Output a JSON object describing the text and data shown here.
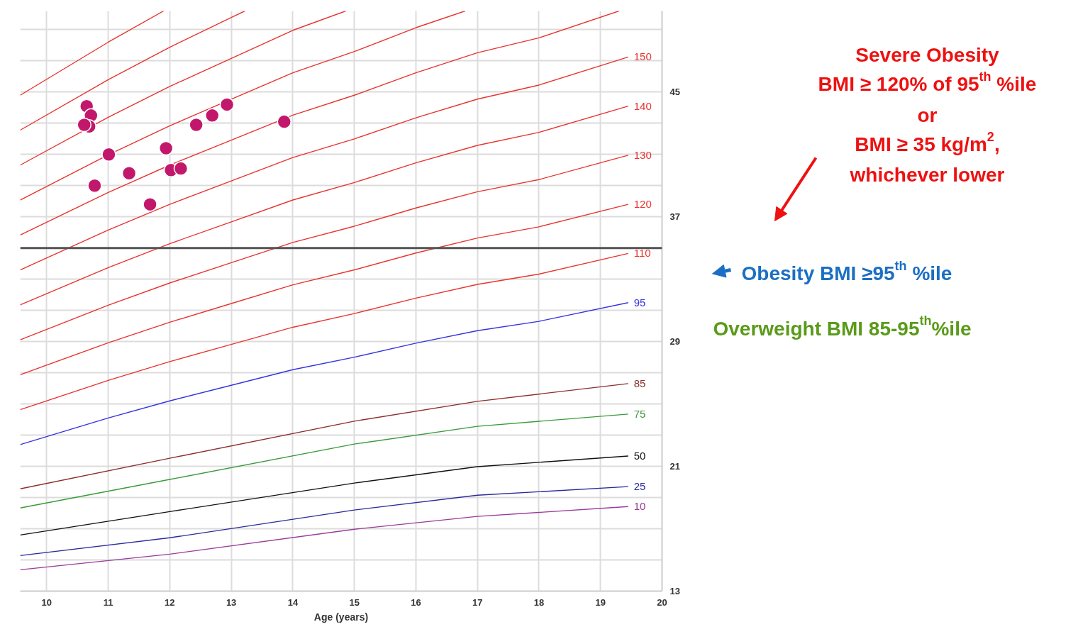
{
  "chart_data": {
    "type": "line",
    "xlabel": "Age (years)",
    "xlim": [
      9.57,
      20
    ],
    "ylim": [
      13,
      50.2
    ],
    "xticks": [
      10,
      11,
      12,
      13,
      14,
      15,
      16,
      17,
      18,
      19,
      20
    ],
    "yticks": [
      13,
      {
        "value": 15,
        "label": null
      },
      {
        "value": 17,
        "label": null
      },
      {
        "value": 19,
        "label": null
      },
      21,
      {
        "value": 23,
        "label": null
      },
      {
        "value": 25,
        "label": null
      },
      {
        "value": 27,
        "label": null
      },
      29,
      {
        "value": 31,
        "label": null
      },
      {
        "value": 33,
        "label": null
      },
      {
        "value": 35,
        "label": null
      },
      37,
      {
        "value": 39,
        "label": null
      },
      {
        "value": 41,
        "label": null
      },
      {
        "value": 43,
        "label": null
      },
      45,
      {
        "value": 47,
        "label": null
      },
      {
        "value": 49,
        "label": null
      }
    ],
    "grid": true,
    "line_style": "solid",
    "ref_lines": [
      {
        "axis": "y",
        "value": 35,
        "color": "#555555"
      }
    ],
    "annotations": [
      "Severe Obesity",
      "BMI ≥ 120% of 95$^{th}$ %ile",
      "or",
      "BMI ≥ 35 kg/m$^{2}$,",
      "whichever lower",
      "Obesity BMI ≥95$^{th}$ %ile",
      "Overweight BMI 85-95$^{th}$%ile"
    ],
    "series": [
      {
        "color": "#e8342e",
        "x": [
          9.57,
          11,
          11.9
        ],
        "values": [
          44.8,
          48.2,
          50.2
        ]
      },
      {
        "color": "#e8342e",
        "x": [
          9.57,
          11,
          12,
          13,
          13.22
        ],
        "values": [
          42.56,
          45.79,
          47.88,
          49.78,
          50.2
        ]
      },
      {
        "color": "#e8342e",
        "x": [
          9.57,
          11,
          12,
          13,
          14,
          14.86
        ],
        "values": [
          40.32,
          43.38,
          45.36,
          47.16,
          48.96,
          50.2
        ]
      },
      {
        "color": "#e8342e",
        "x": [
          9.57,
          11,
          12,
          13,
          14,
          15,
          16,
          16.8
        ],
        "values": [
          38.08,
          40.97,
          42.84,
          44.54,
          46.24,
          47.6,
          49.13,
          50.2
        ]
      },
      {
        "color": "#e8342e",
        "x": [
          9.57,
          11,
          12,
          13,
          14,
          15,
          16,
          17,
          18,
          19.3
        ],
        "values": [
          35.84,
          38.56,
          40.32,
          41.92,
          43.52,
          44.8,
          46.24,
          47.52,
          48.48,
          50.2
        ]
      },
      {
        "name": "150",
        "color": "#e8342e",
        "x": [
          9.57,
          11,
          12,
          13,
          14,
          15,
          16,
          17,
          18,
          19.45
        ],
        "values": [
          33.6,
          36.15,
          37.8,
          39.3,
          40.8,
          42,
          43.35,
          44.55,
          45.45,
          47.25
        ]
      },
      {
        "name": "140",
        "color": "#e8342e",
        "x": [
          9.57,
          11,
          12,
          13,
          14,
          15,
          16,
          17,
          18,
          19.45
        ],
        "values": [
          31.36,
          33.74,
          35.28,
          36.68,
          38.08,
          39.2,
          40.46,
          41.58,
          42.42,
          44.1
        ]
      },
      {
        "name": "130",
        "color": "#e8342e",
        "x": [
          9.57,
          11,
          12,
          13,
          14,
          15,
          16,
          17,
          18,
          19.45
        ],
        "values": [
          29.12,
          31.33,
          32.76,
          34.06,
          35.36,
          36.4,
          37.57,
          38.61,
          39.39,
          40.95
        ]
      },
      {
        "name": "120",
        "color": "#e8342e",
        "x": [
          9.57,
          11,
          12,
          13,
          14,
          15,
          16,
          17,
          18,
          19.45
        ],
        "values": [
          26.88,
          28.92,
          30.24,
          31.44,
          32.64,
          33.6,
          34.68,
          35.64,
          36.36,
          37.8
        ]
      },
      {
        "name": "110",
        "color": "#e8342e",
        "x": [
          9.57,
          11,
          12,
          13,
          14,
          15,
          16,
          17,
          18,
          19.45
        ],
        "values": [
          24.64,
          26.51,
          27.72,
          28.82,
          29.92,
          30.8,
          31.79,
          32.67,
          33.33,
          34.65
        ]
      },
      {
        "name": "95",
        "color": "#3434e0",
        "x": [
          9.57,
          11,
          12,
          13,
          14,
          15,
          16,
          17,
          18,
          19.45
        ],
        "values": [
          22.4,
          24.1,
          25.2,
          26.2,
          27.2,
          28,
          28.9,
          29.7,
          30.3,
          31.5
        ]
      },
      {
        "name": "85",
        "color": "#8b2e2e",
        "x": [
          9.57,
          12,
          15,
          17,
          19.45
        ],
        "values": [
          19.56,
          21.52,
          23.9,
          25.17,
          26.31
        ]
      },
      {
        "name": "75",
        "color": "#3a9a3a",
        "x": [
          9.57,
          12,
          15,
          17,
          19.45
        ],
        "values": [
          18.33,
          20.16,
          22.43,
          23.57,
          24.35
        ]
      },
      {
        "name": "50",
        "color": "#111111",
        "x": [
          9.57,
          12,
          15,
          17,
          19.45
        ],
        "values": [
          16.6,
          18.1,
          19.93,
          20.98,
          21.66
        ]
      },
      {
        "name": "25",
        "color": "#2a2a9a",
        "x": [
          9.57,
          12,
          15,
          17,
          19.45
        ],
        "values": [
          15.28,
          16.42,
          18.2,
          19.15,
          19.7
        ]
      },
      {
        "name": "10",
        "color": "#9a3a9a",
        "x": [
          9.57,
          12,
          15,
          17,
          19.45
        ],
        "values": [
          14.37,
          15.37,
          16.97,
          17.79,
          18.42
        ]
      },
      {
        "type": "scatter",
        "marker": "circle",
        "color": "#c2186b",
        "x": [
          10.65,
          10.72,
          10.69,
          10.61,
          11.01,
          11.34,
          10.78,
          11.68,
          11.94,
          12.02,
          12.18,
          12.43,
          12.69,
          12.93,
          13.86
        ],
        "values": [
          44.1,
          43.5,
          42.8,
          42.9,
          41.0,
          39.8,
          39.0,
          37.8,
          41.4,
          40.0,
          40.1,
          42.9,
          43.5,
          44.2,
          43.1
        ]
      }
    ]
  }
}
